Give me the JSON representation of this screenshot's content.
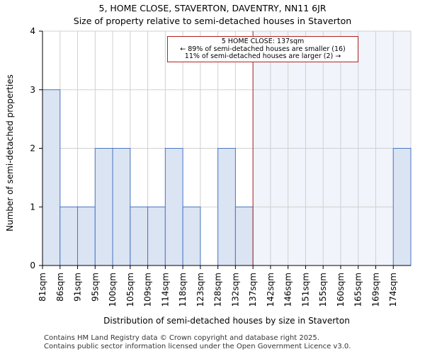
{
  "header": {
    "title": "5, HOME CLOSE, STAVERTON, DAVENTRY, NN11 6JR",
    "subtitle": "Size of property relative to semi-detached houses in Staverton"
  },
  "chart_data": {
    "type": "bar",
    "title": "5, HOME CLOSE, STAVERTON, DAVENTRY, NN11 6JR",
    "subtitle": "Size of property relative to semi-detached houses in Staverton",
    "xlabel": "Distribution of semi-detached houses by size in Staverton",
    "ylabel": "Number of semi-detached properties",
    "categories": [
      "81sqm",
      "86sqm",
      "91sqm",
      "95sqm",
      "100sqm",
      "105sqm",
      "109sqm",
      "114sqm",
      "118sqm",
      "123sqm",
      "128sqm",
      "132sqm",
      "137sqm",
      "142sqm",
      "146sqm",
      "151sqm",
      "155sqm",
      "160sqm",
      "165sqm",
      "169sqm",
      "174sqm"
    ],
    "values": [
      3,
      1,
      1,
      2,
      2,
      1,
      1,
      2,
      1,
      0,
      2,
      1,
      0,
      0,
      0,
      0,
      0,
      0,
      0,
      0,
      2
    ],
    "ylim": [
      0,
      4
    ],
    "yticks": [
      0,
      1,
      2,
      3,
      4
    ],
    "grid": true,
    "marker": {
      "category": "137sqm",
      "label": "5 HOME CLOSE: 137sqm",
      "line1": "← 89% of semi-detached houses are smaller (16)",
      "line2": "11% of semi-detached houses are larger (2) →"
    },
    "colors": {
      "bar_fill": "#dbe4f3",
      "bar_stroke": "#4a76c4",
      "highlight_region": "#f1f4fb",
      "marker_line": "#b22222",
      "grid": "#d0d0d0"
    }
  },
  "footer": {
    "line1": "Contains HM Land Registry data © Crown copyright and database right 2025.",
    "line2": "Contains public sector information licensed under the Open Government Licence v3.0."
  }
}
